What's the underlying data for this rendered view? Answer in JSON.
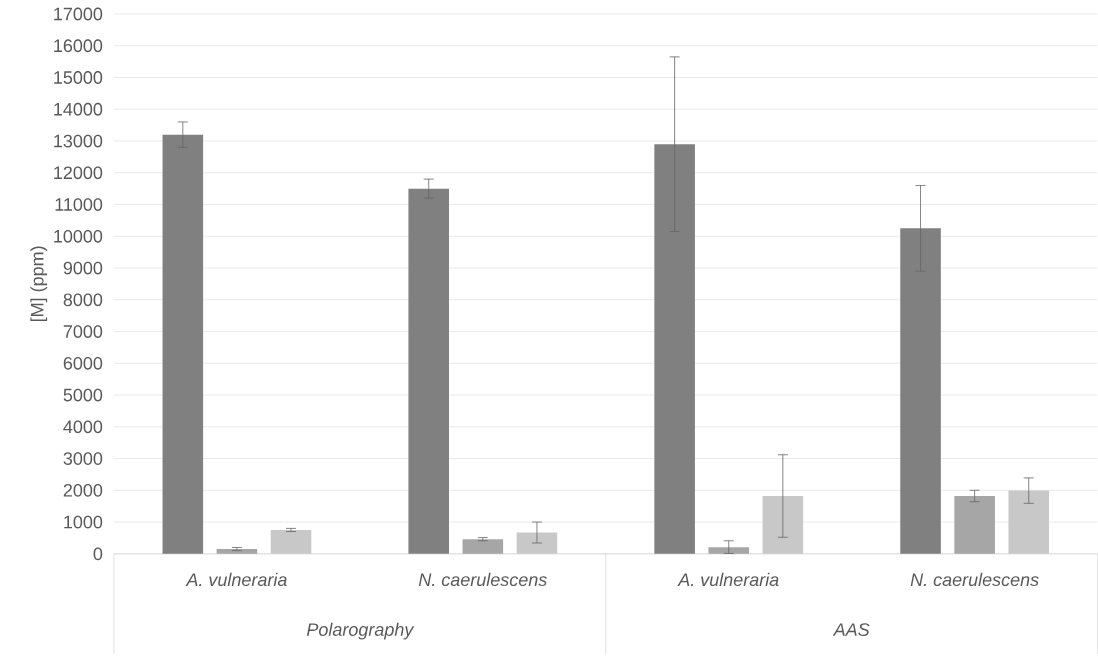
{
  "chart_data": {
    "type": "bar",
    "ylabel": "[M] (ppm)",
    "categories": [
      "A. vulneraria",
      "N. caerulescens",
      "A. vulneraria",
      "N. caerulescens"
    ],
    "annotations": [
      "Polarography",
      "AAS"
    ],
    "series": [
      {
        "color": "#808080",
        "values": [
          13200,
          11500,
          12900,
          10250
        ],
        "errors": [
          400,
          300,
          2750,
          1350
        ]
      },
      {
        "color": "#a6a6a6",
        "values": [
          150,
          460,
          210,
          1820
        ],
        "errors": [
          50,
          50,
          200,
          180
        ]
      },
      {
        "color": "#c8c8c8",
        "values": [
          750,
          670,
          1820,
          1990
        ],
        "errors": [
          50,
          330,
          1300,
          400
        ]
      }
    ],
    "ylim": [
      0,
      17000
    ],
    "yticks": [
      0,
      1000,
      2000,
      3000,
      4000,
      5000,
      6000,
      7000,
      8000,
      9000,
      10000,
      11000,
      12000,
      13000,
      14000,
      15000,
      16000,
      17000
    ],
    "grid": "y"
  }
}
